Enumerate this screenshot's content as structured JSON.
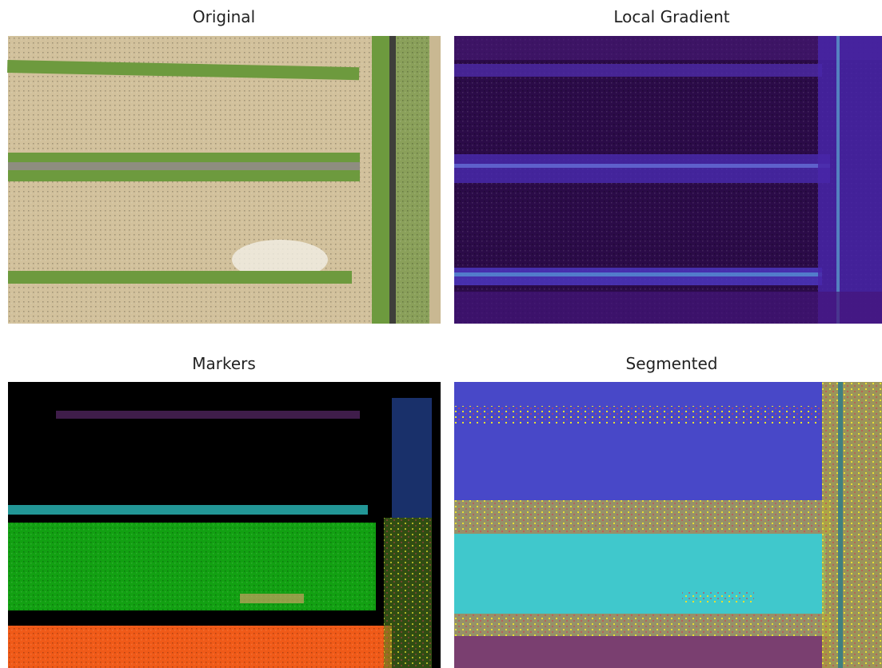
{
  "panels": [
    {
      "title": "Original"
    },
    {
      "title": "Local Gradient"
    },
    {
      "title": "Markers"
    },
    {
      "title": "Segmented"
    }
  ]
}
